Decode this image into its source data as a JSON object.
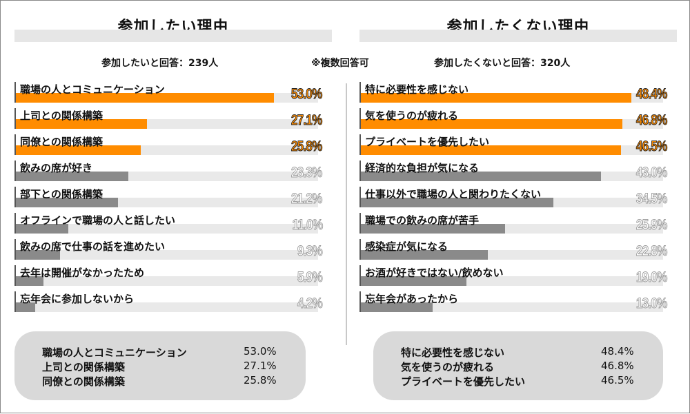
{
  "note": "※複数回答可",
  "colors": {
    "highlight": "#ff8c00",
    "normal": "#8a8a8a",
    "track": "#e9e9e9"
  },
  "chart_data": [
    {
      "type": "bar",
      "title": "参加したい理由",
      "subtitle": "参加したいと回答：239人",
      "categories": [
        "職場の人とコミュニケーション",
        "上司との関係構築",
        "同僚との関係構築",
        "飲みの席が好き",
        "部下との関係構築",
        "オフラインで職場の人と話したい",
        "飲みの席で仕事の話を進めたい",
        "去年は開催がなかったため",
        "忘年会に参加しないから"
      ],
      "values": [
        53.0,
        27.1,
        25.8,
        23.3,
        21.2,
        11.0,
        9.3,
        5.9,
        4.2
      ],
      "value_labels": [
        "53.0%",
        "27.1%",
        "25.8%",
        "23.3%",
        "21.2%",
        "11.0%",
        "9.3%",
        "5.9%",
        "4.2%"
      ],
      "highlight_count": 3,
      "xlim": [
        0,
        62
      ],
      "top3": [
        {
          "label": "職場の人とコミュニケーション",
          "value": "53.0%"
        },
        {
          "label": "上司との関係構築",
          "value": "27.1%"
        },
        {
          "label": "同僚との関係構築",
          "value": "25.8%"
        }
      ]
    },
    {
      "type": "bar",
      "title": "参加したくない理由",
      "subtitle": "参加したくないと回答：320人",
      "categories": [
        "特に必要性を感じない",
        "気を使うのが疲れる",
        "プライベートを優先したい",
        "経済的な負担が気になる",
        "仕事以外で職場の人と関わりたくない",
        "職場での飲みの席が苦手",
        "感染症が気になる",
        "お酒が好きではない/飲めない",
        "忘年会があったから"
      ],
      "values": [
        48.4,
        46.8,
        46.5,
        43.0,
        34.5,
        25.9,
        22.8,
        19.0,
        13.0
      ],
      "value_labels": [
        "48.4%",
        "46.8%",
        "46.5%",
        "43.0%",
        "34.5%",
        "25.9%",
        "22.8%",
        "19.0%",
        "13.0%"
      ],
      "highlight_count": 3,
      "xlim": [
        0,
        54
      ],
      "top3": [
        {
          "label": "特に必要性を感じない",
          "value": "48.4%"
        },
        {
          "label": "気を使うのが疲れる",
          "value": "46.8%"
        },
        {
          "label": "プライベートを優先したい",
          "value": "46.5%"
        }
      ]
    }
  ]
}
